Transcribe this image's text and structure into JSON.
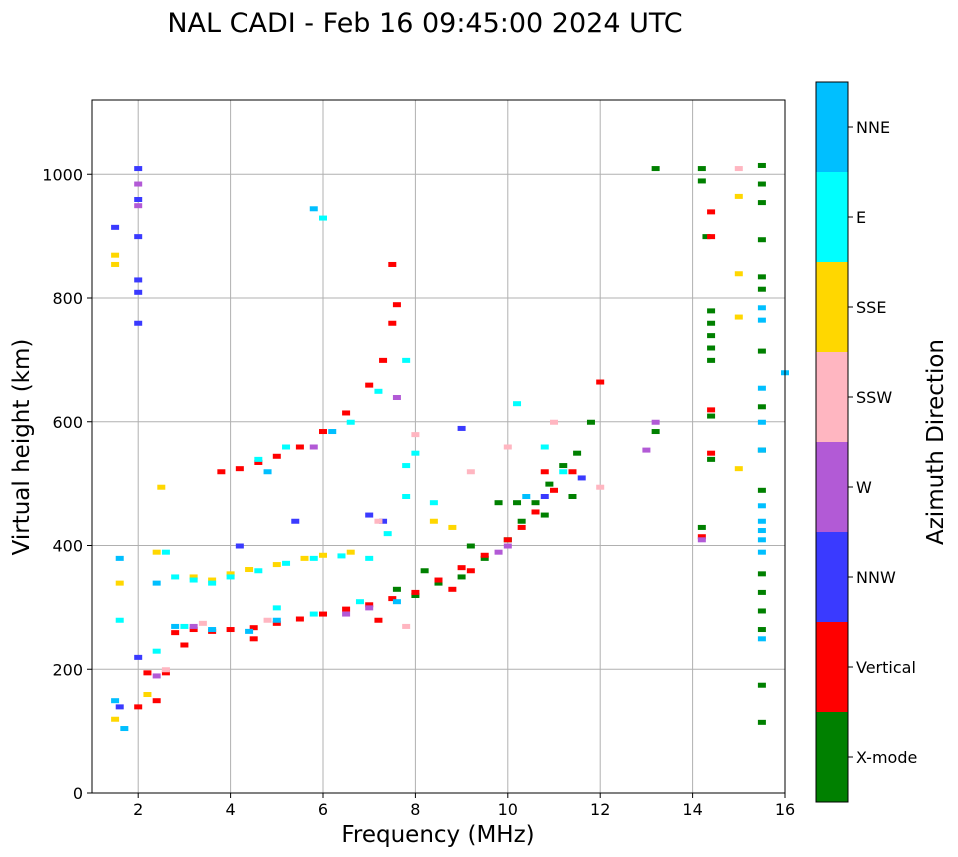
{
  "chart_data": {
    "type": "scatter",
    "title": "NAL CADI - Feb 16 09:45:00 2024 UTC",
    "xlabel": "Frequency (MHz)",
    "ylabel": "Virtual height (km)",
    "xlim": [
      1,
      16
    ],
    "ylim": [
      0,
      1120
    ],
    "xticks": [
      2,
      4,
      6,
      8,
      10,
      12,
      14,
      16
    ],
    "yticks": [
      0,
      200,
      400,
      600,
      800,
      1000
    ],
    "grid": true,
    "colorbar": {
      "label": "Azimuth Direction",
      "entries": [
        {
          "name": "X-mode",
          "color": "#008000"
        },
        {
          "name": "Vertical",
          "color": "#ff0000"
        },
        {
          "name": "NNW",
          "color": "#3a3aff"
        },
        {
          "name": "W",
          "color": "#b25ad6"
        },
        {
          "name": "SSW",
          "color": "#ffb6c1"
        },
        {
          "name": "SSE",
          "color": "#ffd700"
        },
        {
          "name": "E",
          "color": "#00ffff"
        },
        {
          "name": "NNE",
          "color": "#00bfff"
        }
      ]
    },
    "series": [
      {
        "name": "X-mode",
        "points": [
          [
            7.6,
            330
          ],
          [
            8,
            320
          ],
          [
            8.5,
            340
          ],
          [
            9,
            350
          ],
          [
            9.5,
            380
          ],
          [
            10,
            410
          ],
          [
            10.3,
            440
          ],
          [
            10.6,
            470
          ],
          [
            10.9,
            500
          ],
          [
            11.2,
            530
          ],
          [
            11.5,
            550
          ],
          [
            9.2,
            400
          ],
          [
            8.2,
            360
          ],
          [
            14.2,
            1010
          ],
          [
            14.2,
            990
          ],
          [
            14.3,
            900
          ],
          [
            14.4,
            780
          ],
          [
            14.4,
            760
          ],
          [
            14.4,
            740
          ],
          [
            14.4,
            720
          ],
          [
            14.4,
            700
          ],
          [
            14.4,
            610
          ],
          [
            14.4,
            540
          ],
          [
            14.2,
            430
          ],
          [
            15.5,
            1015
          ],
          [
            15.5,
            985
          ],
          [
            15.5,
            955
          ],
          [
            15.5,
            895
          ],
          [
            15.5,
            835
          ],
          [
            15.5,
            815
          ],
          [
            15.5,
            715
          ],
          [
            15.5,
            625
          ],
          [
            15.5,
            555
          ],
          [
            15.5,
            490
          ],
          [
            15.5,
            355
          ],
          [
            15.5,
            325
          ],
          [
            15.5,
            295
          ],
          [
            15.5,
            265
          ],
          [
            15.5,
            175
          ],
          [
            15.5,
            115
          ],
          [
            13.2,
            1010
          ],
          [
            13.2,
            585
          ],
          [
            11.8,
            600
          ],
          [
            10.2,
            470
          ],
          [
            10.8,
            450
          ],
          [
            11.4,
            480
          ],
          [
            9.8,
            470
          ]
        ]
      },
      {
        "name": "Vertical",
        "points": [
          [
            2,
            140
          ],
          [
            2.4,
            150
          ],
          [
            2.8,
            260
          ],
          [
            3.2,
            265
          ],
          [
            3.6,
            262
          ],
          [
            4,
            265
          ],
          [
            4.5,
            268
          ],
          [
            5,
            275
          ],
          [
            5.5,
            282
          ],
          [
            6,
            290
          ],
          [
            6.5,
            298
          ],
          [
            7,
            305
          ],
          [
            7.5,
            315
          ],
          [
            8,
            325
          ],
          [
            8.5,
            345
          ],
          [
            9,
            365
          ],
          [
            9.5,
            385
          ],
          [
            10,
            410
          ],
          [
            10.3,
            430
          ],
          [
            10.6,
            455
          ],
          [
            11,
            490
          ],
          [
            11.4,
            520
          ],
          [
            3.8,
            520
          ],
          [
            4.2,
            525
          ],
          [
            4.6,
            535
          ],
          [
            5,
            545
          ],
          [
            5.5,
            560
          ],
          [
            6,
            585
          ],
          [
            6.5,
            615
          ],
          [
            7,
            660
          ],
          [
            7.3,
            700
          ],
          [
            7.5,
            760
          ],
          [
            7.6,
            790
          ],
          [
            7.5,
            855
          ],
          [
            8.8,
            330
          ],
          [
            9.2,
            360
          ],
          [
            7.2,
            280
          ],
          [
            2.2,
            195
          ],
          [
            3,
            240
          ],
          [
            4.5,
            250
          ],
          [
            12,
            665
          ],
          [
            14.4,
            900
          ],
          [
            14.4,
            940
          ],
          [
            14.4,
            620
          ],
          [
            14.4,
            550
          ],
          [
            14.2,
            415
          ],
          [
            2.6,
            195
          ],
          [
            10.8,
            520
          ]
        ]
      },
      {
        "name": "NNW",
        "points": [
          [
            2,
            1010
          ],
          [
            2,
            960
          ],
          [
            2,
            900
          ],
          [
            2,
            830
          ],
          [
            2,
            810
          ],
          [
            2,
            760
          ],
          [
            1.5,
            915
          ],
          [
            1.6,
            140
          ],
          [
            2,
            220
          ],
          [
            7,
            450
          ],
          [
            7.3,
            440
          ],
          [
            10.8,
            480
          ],
          [
            11.6,
            510
          ],
          [
            9,
            590
          ],
          [
            4.2,
            400
          ],
          [
            5.4,
            440
          ]
        ]
      },
      {
        "name": "W",
        "points": [
          [
            2,
            985
          ],
          [
            2,
            950
          ],
          [
            6.5,
            290
          ],
          [
            7,
            300
          ],
          [
            9.8,
            390
          ],
          [
            10,
            400
          ],
          [
            7.6,
            640
          ],
          [
            2.4,
            190
          ],
          [
            3.2,
            270
          ],
          [
            5.8,
            560
          ],
          [
            13,
            555
          ],
          [
            13.2,
            600
          ],
          [
            14.2,
            410
          ]
        ]
      },
      {
        "name": "SSW",
        "points": [
          [
            8,
            580
          ],
          [
            9.2,
            520
          ],
          [
            10,
            560
          ],
          [
            11,
            600
          ],
          [
            12,
            495
          ],
          [
            7.2,
            440
          ],
          [
            15,
            1010
          ],
          [
            3.4,
            275
          ],
          [
            2.6,
            200
          ],
          [
            4.8,
            280
          ],
          [
            7.8,
            270
          ]
        ]
      },
      {
        "name": "SSE",
        "points": [
          [
            1.5,
            870
          ],
          [
            1.5,
            855
          ],
          [
            2.5,
            495
          ],
          [
            2.4,
            390
          ],
          [
            3.2,
            350
          ],
          [
            3.6,
            345
          ],
          [
            4,
            355
          ],
          [
            4.4,
            362
          ],
          [
            5,
            370
          ],
          [
            5.6,
            380
          ],
          [
            6,
            385
          ],
          [
            6.6,
            390
          ],
          [
            8.4,
            440
          ],
          [
            8.8,
            430
          ],
          [
            15,
            965
          ],
          [
            15,
            840
          ],
          [
            15,
            770
          ],
          [
            15,
            525
          ],
          [
            1.6,
            340
          ],
          [
            1.5,
            120
          ],
          [
            2.2,
            160
          ]
        ]
      },
      {
        "name": "E",
        "points": [
          [
            2.6,
            390
          ],
          [
            2.8,
            350
          ],
          [
            3.2,
            345
          ],
          [
            3.6,
            340
          ],
          [
            4,
            350
          ],
          [
            4.6,
            360
          ],
          [
            5.2,
            372
          ],
          [
            5.8,
            380
          ],
          [
            6.4,
            384
          ],
          [
            7,
            380
          ],
          [
            7.4,
            420
          ],
          [
            7.8,
            480
          ],
          [
            7.8,
            530
          ],
          [
            8,
            550
          ],
          [
            8.4,
            470
          ],
          [
            6,
            930
          ],
          [
            4.6,
            540
          ],
          [
            5.2,
            560
          ],
          [
            6.6,
            600
          ],
          [
            7.2,
            650
          ],
          [
            7.8,
            700
          ],
          [
            10.2,
            630
          ],
          [
            10.8,
            560
          ],
          [
            11.2,
            520
          ],
          [
            1.6,
            280
          ],
          [
            2.4,
            230
          ],
          [
            5,
            300
          ],
          [
            5.8,
            290
          ],
          [
            6.8,
            310
          ],
          [
            3,
            270
          ]
        ]
      },
      {
        "name": "NNE",
        "points": [
          [
            5.8,
            945
          ],
          [
            15.5,
            785
          ],
          [
            15.5,
            765
          ],
          [
            15.5,
            655
          ],
          [
            15.5,
            600
          ],
          [
            15.5,
            555
          ],
          [
            15.5,
            465
          ],
          [
            15.5,
            440
          ],
          [
            15.5,
            425
          ],
          [
            15.5,
            410
          ],
          [
            15.5,
            390
          ],
          [
            15.5,
            250
          ],
          [
            16,
            680
          ],
          [
            2.8,
            270
          ],
          [
            3.6,
            265
          ],
          [
            4.4,
            262
          ],
          [
            5,
            280
          ],
          [
            1.6,
            380
          ],
          [
            2.4,
            340
          ],
          [
            10.4,
            480
          ],
          [
            1.5,
            150
          ],
          [
            1.7,
            105
          ],
          [
            7.6,
            310
          ],
          [
            4.8,
            520
          ],
          [
            6.2,
            585
          ]
        ]
      }
    ]
  }
}
